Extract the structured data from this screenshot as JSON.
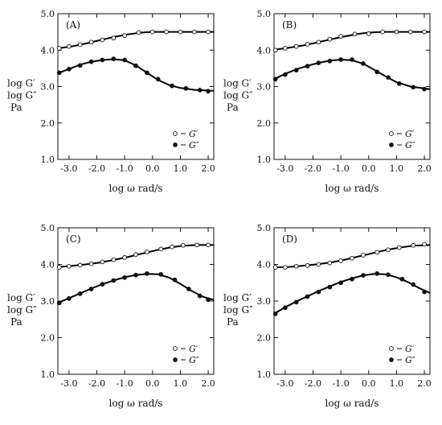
{
  "chart_data": [
    {
      "type": "line",
      "panel_label": "(A)",
      "xlabel": "log ω  rad/s",
      "ylabel": [
        "log G′",
        "log G″",
        "Pa"
      ],
      "xlim": [
        -3.4,
        2.2
      ],
      "ylim": [
        1.0,
        5.0
      ],
      "xticks": [
        -3.0,
        -2.0,
        -1.0,
        0.0,
        1.0,
        2.0
      ],
      "xticklabels": [
        "-3.0",
        "-2.0",
        "-1.0",
        "0.0",
        "1.0",
        "2.0"
      ],
      "yticks": [
        1.0,
        2.0,
        3.0,
        4.0,
        5.0
      ],
      "yticklabels": [
        "1.0",
        "2.0",
        "3.0",
        "4.0",
        "5.0"
      ],
      "legend_position": "bottom-right",
      "series": [
        {
          "name": "G′",
          "marker": "open",
          "points": [
            [
              -3.35,
              4.05
            ],
            [
              -3.0,
              4.1
            ],
            [
              -2.6,
              4.15
            ],
            [
              -2.2,
              4.22
            ],
            [
              -1.8,
              4.28
            ],
            [
              -1.4,
              4.33
            ],
            [
              -1.0,
              4.4
            ],
            [
              -0.5,
              4.48
            ],
            [
              0.0,
              4.5
            ],
            [
              0.5,
              4.5
            ],
            [
              1.0,
              4.5
            ],
            [
              1.5,
              4.5
            ],
            [
              2.0,
              4.5
            ]
          ],
          "fit": [
            [
              -3.4,
              4.05
            ],
            [
              -2.9,
              4.1
            ],
            [
              -2.4,
              4.18
            ],
            [
              -1.9,
              4.27
            ],
            [
              -1.4,
              4.36
            ],
            [
              -0.9,
              4.43
            ],
            [
              -0.4,
              4.48
            ],
            [
              0.0,
              4.5
            ],
            [
              0.5,
              4.5
            ],
            [
              1.0,
              4.5
            ],
            [
              1.5,
              4.5
            ],
            [
              2.2,
              4.5
            ]
          ]
        },
        {
          "name": "G″",
          "marker": "filled",
          "points": [
            [
              -3.35,
              3.38
            ],
            [
              -3.0,
              3.48
            ],
            [
              -2.6,
              3.58
            ],
            [
              -2.2,
              3.68
            ],
            [
              -1.8,
              3.73
            ],
            [
              -1.4,
              3.76
            ],
            [
              -1.0,
              3.73
            ],
            [
              -0.6,
              3.57
            ],
            [
              -0.2,
              3.38
            ],
            [
              0.2,
              3.2
            ],
            [
              0.7,
              3.02
            ],
            [
              1.2,
              2.95
            ],
            [
              1.7,
              2.9
            ],
            [
              2.0,
              2.87
            ]
          ],
          "fit": [
            [
              -3.4,
              3.37
            ],
            [
              -3.0,
              3.48
            ],
            [
              -2.6,
              3.6
            ],
            [
              -2.2,
              3.68
            ],
            [
              -1.8,
              3.73
            ],
            [
              -1.4,
              3.75
            ],
            [
              -1.0,
              3.72
            ],
            [
              -0.6,
              3.58
            ],
            [
              -0.2,
              3.38
            ],
            [
              0.2,
              3.18
            ],
            [
              0.6,
              3.04
            ],
            [
              1.0,
              2.96
            ],
            [
              1.5,
              2.91
            ],
            [
              2.2,
              2.88
            ]
          ]
        }
      ]
    },
    {
      "type": "line",
      "panel_label": "(B)",
      "xlabel": "log ω  rad/s",
      "ylabel": [
        "log G′",
        "log G″",
        "Pa"
      ],
      "xlim": [
        -3.4,
        2.2
      ],
      "ylim": [
        1.0,
        5.0
      ],
      "xticks": [
        -3.0,
        -2.0,
        -1.0,
        0.0,
        1.0,
        2.0
      ],
      "xticklabels": [
        "-3.0",
        "-2.0",
        "-1.0",
        "0.0",
        "1.0",
        "2.0"
      ],
      "yticks": [
        1.0,
        2.0,
        3.0,
        4.0,
        5.0
      ],
      "yticklabels": [
        "1.0",
        "2.0",
        "3.0",
        "4.0",
        "5.0"
      ],
      "legend_position": "bottom-right",
      "series": [
        {
          "name": "G′",
          "marker": "open",
          "points": [
            [
              -3.35,
              4.0
            ],
            [
              -3.0,
              4.05
            ],
            [
              -2.6,
              4.1
            ],
            [
              -2.2,
              4.16
            ],
            [
              -1.8,
              4.22
            ],
            [
              -1.4,
              4.3
            ],
            [
              -1.0,
              4.38
            ],
            [
              -0.5,
              4.44
            ],
            [
              0.0,
              4.45
            ],
            [
              0.5,
              4.5
            ],
            [
              1.0,
              4.5
            ],
            [
              1.5,
              4.5
            ],
            [
              2.0,
              4.5
            ]
          ],
          "fit": [
            [
              -3.4,
              4.01
            ],
            [
              -2.9,
              4.06
            ],
            [
              -2.4,
              4.12
            ],
            [
              -1.9,
              4.2
            ],
            [
              -1.4,
              4.29
            ],
            [
              -0.9,
              4.37
            ],
            [
              -0.4,
              4.44
            ],
            [
              0.0,
              4.48
            ],
            [
              0.5,
              4.5
            ],
            [
              1.0,
              4.5
            ],
            [
              1.5,
              4.5
            ],
            [
              2.2,
              4.5
            ]
          ]
        },
        {
          "name": "G″",
          "marker": "filled",
          "points": [
            [
              -3.35,
              3.2
            ],
            [
              -3.0,
              3.33
            ],
            [
              -2.6,
              3.45
            ],
            [
              -2.2,
              3.56
            ],
            [
              -1.8,
              3.65
            ],
            [
              -1.4,
              3.7
            ],
            [
              -1.0,
              3.74
            ],
            [
              -0.6,
              3.74
            ],
            [
              -0.2,
              3.63
            ],
            [
              0.3,
              3.4
            ],
            [
              0.7,
              3.25
            ],
            [
              1.1,
              3.08
            ],
            [
              1.6,
              2.98
            ],
            [
              2.0,
              2.93
            ]
          ],
          "fit": [
            [
              -3.4,
              3.2
            ],
            [
              -3.0,
              3.35
            ],
            [
              -2.6,
              3.47
            ],
            [
              -2.2,
              3.57
            ],
            [
              -1.8,
              3.65
            ],
            [
              -1.4,
              3.71
            ],
            [
              -1.0,
              3.74
            ],
            [
              -0.6,
              3.72
            ],
            [
              -0.2,
              3.63
            ],
            [
              0.2,
              3.46
            ],
            [
              0.6,
              3.28
            ],
            [
              1.0,
              3.12
            ],
            [
              1.5,
              3.0
            ],
            [
              2.2,
              2.93
            ]
          ]
        }
      ]
    },
    {
      "type": "line",
      "panel_label": "(C)",
      "xlabel": "log ω  rad/s",
      "ylabel": [
        "log G′",
        "log G″",
        "Pa"
      ],
      "xlim": [
        -3.4,
        2.2
      ],
      "ylim": [
        1.0,
        5.0
      ],
      "xticks": [
        -3.0,
        -2.0,
        -1.0,
        0.0,
        1.0,
        2.0
      ],
      "xticklabels": [
        "-3.0",
        "-2.0",
        "-1.0",
        "0.0",
        "1.0",
        "2.0"
      ],
      "yticks": [
        1.0,
        2.0,
        3.0,
        4.0,
        5.0
      ],
      "yticklabels": [
        "1.0",
        "2.0",
        "3.0",
        "4.0",
        "5.0"
      ],
      "legend_position": "bottom-right",
      "series": [
        {
          "name": "G′",
          "marker": "open",
          "points": [
            [
              -3.35,
              3.92
            ],
            [
              -3.0,
              3.95
            ],
            [
              -2.6,
              3.98
            ],
            [
              -2.2,
              4.02
            ],
            [
              -1.8,
              4.07
            ],
            [
              -1.4,
              4.13
            ],
            [
              -1.0,
              4.19
            ],
            [
              -0.6,
              4.27
            ],
            [
              -0.2,
              4.34
            ],
            [
              0.3,
              4.42
            ],
            [
              0.7,
              4.48
            ],
            [
              1.1,
              4.52
            ],
            [
              1.6,
              4.53
            ],
            [
              2.0,
              4.53
            ]
          ],
          "fit": [
            [
              -3.4,
              3.93
            ],
            [
              -2.9,
              3.96
            ],
            [
              -2.4,
              4.0
            ],
            [
              -1.9,
              4.05
            ],
            [
              -1.4,
              4.12
            ],
            [
              -0.9,
              4.2
            ],
            [
              -0.4,
              4.29
            ],
            [
              0.1,
              4.38
            ],
            [
              0.6,
              4.46
            ],
            [
              1.1,
              4.51
            ],
            [
              1.6,
              4.53
            ],
            [
              2.2,
              4.53
            ]
          ]
        },
        {
          "name": "G″",
          "marker": "filled",
          "points": [
            [
              -3.35,
              2.95
            ],
            [
              -3.0,
              3.07
            ],
            [
              -2.6,
              3.2
            ],
            [
              -2.2,
              3.33
            ],
            [
              -1.8,
              3.46
            ],
            [
              -1.4,
              3.56
            ],
            [
              -1.0,
              3.64
            ],
            [
              -0.6,
              3.71
            ],
            [
              -0.2,
              3.75
            ],
            [
              0.3,
              3.73
            ],
            [
              0.8,
              3.58
            ],
            [
              1.3,
              3.33
            ],
            [
              1.7,
              3.14
            ],
            [
              2.0,
              3.04
            ]
          ],
          "fit": [
            [
              -3.4,
              2.95
            ],
            [
              -3.0,
              3.08
            ],
            [
              -2.6,
              3.21
            ],
            [
              -2.2,
              3.34
            ],
            [
              -1.8,
              3.46
            ],
            [
              -1.4,
              3.56
            ],
            [
              -1.0,
              3.65
            ],
            [
              -0.6,
              3.71
            ],
            [
              -0.2,
              3.74
            ],
            [
              0.2,
              3.73
            ],
            [
              0.6,
              3.64
            ],
            [
              1.0,
              3.47
            ],
            [
              1.4,
              3.28
            ],
            [
              1.8,
              3.12
            ],
            [
              2.2,
              3.03
            ]
          ]
        }
      ]
    },
    {
      "type": "line",
      "panel_label": "(D)",
      "xlabel": "log ω  rad/s",
      "ylabel": [
        "log G′",
        "log G″",
        "Pa"
      ],
      "xlim": [
        -3.4,
        2.2
      ],
      "ylim": [
        1.0,
        5.0
      ],
      "xticks": [
        -3.0,
        -2.0,
        -1.0,
        0.0,
        1.0,
        2.0
      ],
      "xticklabels": [
        "-3.0",
        "-2.0",
        "-1.0",
        "0.0",
        "1.0",
        "2.0"
      ],
      "yticks": [
        1.0,
        2.0,
        3.0,
        4.0,
        5.0
      ],
      "yticklabels": [
        "1.0",
        "2.0",
        "3.0",
        "4.0",
        "5.0"
      ],
      "legend_position": "bottom-right",
      "series": [
        {
          "name": "G′",
          "marker": "open",
          "points": [
            [
              -3.35,
              3.92
            ],
            [
              -3.0,
              3.92
            ],
            [
              -2.6,
              3.95
            ],
            [
              -2.2,
              3.97
            ],
            [
              -1.8,
              4.0
            ],
            [
              -1.4,
              4.04
            ],
            [
              -1.0,
              4.1
            ],
            [
              -0.6,
              4.17
            ],
            [
              -0.2,
              4.25
            ],
            [
              0.3,
              4.33
            ],
            [
              0.7,
              4.4
            ],
            [
              1.1,
              4.46
            ],
            [
              1.6,
              4.52
            ],
            [
              2.0,
              4.55
            ]
          ],
          "fit": [
            [
              -3.4,
              3.92
            ],
            [
              -2.9,
              3.93
            ],
            [
              -2.4,
              3.96
            ],
            [
              -1.9,
              4.0
            ],
            [
              -1.4,
              4.05
            ],
            [
              -0.9,
              4.12
            ],
            [
              -0.4,
              4.21
            ],
            [
              0.1,
              4.3
            ],
            [
              0.6,
              4.39
            ],
            [
              1.1,
              4.46
            ],
            [
              1.6,
              4.51
            ],
            [
              2.2,
              4.53
            ]
          ]
        },
        {
          "name": "G″",
          "marker": "filled",
          "points": [
            [
              -3.35,
              2.65
            ],
            [
              -3.0,
              2.82
            ],
            [
              -2.6,
              2.97
            ],
            [
              -2.2,
              3.12
            ],
            [
              -1.8,
              3.25
            ],
            [
              -1.4,
              3.38
            ],
            [
              -1.0,
              3.5
            ],
            [
              -0.6,
              3.6
            ],
            [
              -0.2,
              3.7
            ],
            [
              0.3,
              3.75
            ],
            [
              0.7,
              3.72
            ],
            [
              1.2,
              3.6
            ],
            [
              1.6,
              3.45
            ],
            [
              2.0,
              3.25
            ]
          ],
          "fit": [
            [
              -3.4,
              2.65
            ],
            [
              -3.0,
              2.83
            ],
            [
              -2.6,
              2.99
            ],
            [
              -2.2,
              3.13
            ],
            [
              -1.8,
              3.27
            ],
            [
              -1.4,
              3.4
            ],
            [
              -1.0,
              3.52
            ],
            [
              -0.6,
              3.62
            ],
            [
              -0.2,
              3.7
            ],
            [
              0.2,
              3.74
            ],
            [
              0.6,
              3.73
            ],
            [
              1.0,
              3.65
            ],
            [
              1.4,
              3.52
            ],
            [
              1.8,
              3.36
            ],
            [
              2.2,
              3.22
            ]
          ]
        }
      ]
    }
  ]
}
